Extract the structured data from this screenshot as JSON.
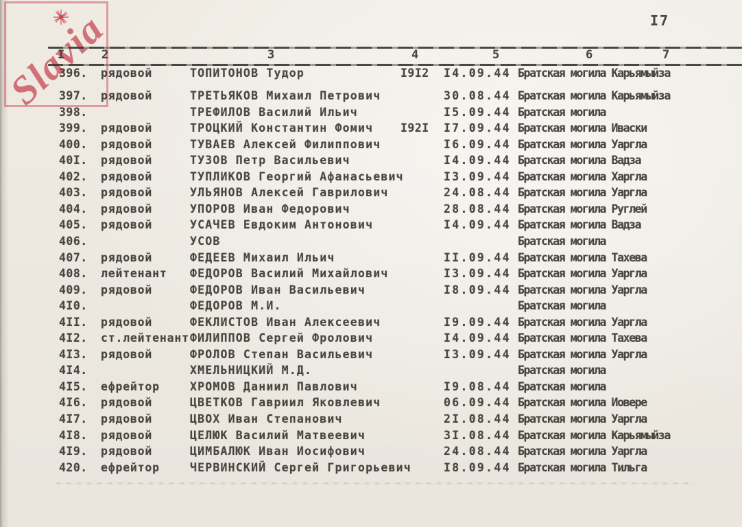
{
  "document": {
    "page_number": "I7",
    "stamp": {
      "text": "Slavia"
    },
    "colors": {
      "paper": "#f4f0e8",
      "ink": "#3b3933",
      "stamp": "#c9545f"
    },
    "table": {
      "column_numbers": [
        "I",
        "2",
        "3",
        "4",
        "5",
        "6",
        "7"
      ],
      "rows": [
        {
          "num": "396.",
          "rank": "рядовой",
          "name": "ТОПИТОНОВ Тудор",
          "year": "I9I2",
          "date": "I4.09.44",
          "burial": "Братская могила Карьямыйза"
        },
        {
          "num": "397.",
          "rank": "рядовой",
          "name": "ТРЕТЬЯКОВ Михаил Петрович",
          "year": "",
          "date": "30.08.44",
          "burial": "Братская могила Карьямыйза"
        },
        {
          "num": "398.",
          "rank": "",
          "name": "ТРЕФИЛОВ Василий Ильич",
          "year": "",
          "date": "I5.09.44",
          "burial": "Братская могила"
        },
        {
          "num": "399.",
          "rank": "рядовой",
          "name": "ТРОЦКИЙ Константин Фомич",
          "year": "I92I",
          "date": "I7.09.44",
          "burial": "Братская могила Иваски"
        },
        {
          "num": "400.",
          "rank": "рядовой",
          "name": "ТУВАЕВ Алексей Филиппович",
          "year": "",
          "date": "I6.09.44",
          "burial": "Братская могила Уаргла"
        },
        {
          "num": "40I.",
          "rank": "рядовой",
          "name": "ТУЗОВ Петр Васильевич",
          "year": "",
          "date": "I4.09.44",
          "burial": "Братская могила Вадза"
        },
        {
          "num": "402.",
          "rank": "рядовой",
          "name": "ТУПЛИКОВ Георгий Афанасьевич",
          "year": "",
          "date": "I3.09.44",
          "burial": "Братская могила Харгла"
        },
        {
          "num": "403.",
          "rank": "рядовой",
          "name": "УЛЬЯНОВ Алексей Гаврилович",
          "year": "",
          "date": "24.08.44",
          "burial": "Братская могила Уаргла"
        },
        {
          "num": "404.",
          "rank": "рядовой",
          "name": "УПОРОВ Иван Федорович",
          "year": "",
          "date": "28.08.44",
          "burial": "Братская могила Руглей"
        },
        {
          "num": "405.",
          "rank": "рядовой",
          "name": "УСАЧЕВ Евдоким Антонович",
          "year": "",
          "date": "I4.09.44",
          "burial": "Братская могила Вадза"
        },
        {
          "num": "406.",
          "rank": "",
          "name": "УСОВ",
          "year": "",
          "date": "",
          "burial": "Братская могила"
        },
        {
          "num": "407.",
          "rank": "рядовой",
          "name": "ФЕДЕЕВ Михаил Ильич",
          "year": "",
          "date": "II.09.44",
          "burial": "Братская могила Тахева"
        },
        {
          "num": "408.",
          "rank": "лейтенант",
          "name": "ФЕДОРОВ Василий Михайлович",
          "year": "",
          "date": "I3.09.44",
          "burial": "Братская могила Уаргла"
        },
        {
          "num": "409.",
          "rank": "рядовой",
          "name": "ФЕДОРОВ Иван Васильевич",
          "year": "",
          "date": "I8.09.44",
          "burial": "Братская могила Уаргла"
        },
        {
          "num": "4I0.",
          "rank": "",
          "name": "ФЕДОРОВ М.И.",
          "year": "",
          "date": "",
          "burial": "Братская могила"
        },
        {
          "num": "4II.",
          "rank": "рядовой",
          "name": "ФЕКЛИСТОВ Иван Алексеевич",
          "year": "",
          "date": "I9.09.44",
          "burial": "Братская могила Уаргла"
        },
        {
          "num": "4I2.",
          "rank": "ст.лейтенант",
          "name": "ФИЛИППОВ Сергей Фролович",
          "year": "",
          "date": "I4.09.44",
          "burial": "Братская могила Тахева"
        },
        {
          "num": "4I3.",
          "rank": "рядовой",
          "name": "ФРОЛОВ Степан Васильевич",
          "year": "",
          "date": "I3.09.44",
          "burial": "Братская могила Уаргла"
        },
        {
          "num": "4I4.",
          "rank": "",
          "name": "ХМЕЛЬНИЦКИЙ М.Д.",
          "year": "",
          "date": "",
          "burial": "Братская могила"
        },
        {
          "num": "4I5.",
          "rank": "ефрейтор",
          "name": "ХРОМОВ Даниил Павлович",
          "year": "",
          "date": "I9.08.44",
          "burial": "Братская могила"
        },
        {
          "num": "4I6.",
          "rank": "рядовой",
          "name": "ЦВЕТКОВ Гавриил Яковлевич",
          "year": "",
          "date": "06.09.44",
          "burial": "Братская могила Иовере"
        },
        {
          "num": "4I7.",
          "rank": "рядовой",
          "name": "ЦВОХ Иван Степанович",
          "year": "",
          "date": "2I.08.44",
          "burial": "Братская могила Уаргла"
        },
        {
          "num": "4I8.",
          "rank": "рядовой",
          "name": "ЦЕЛЮК Василий Матвеевич",
          "year": "",
          "date": "3I.08.44",
          "burial": "Братская могила Карьямыйза"
        },
        {
          "num": "4I9.",
          "rank": "рядовой",
          "name": "ЦИМБАЛЮК Иван Иосифович",
          "year": "",
          "date": "24.08.44",
          "burial": "Братская могила Уаргла"
        },
        {
          "num": "420.",
          "rank": "ефрейтор",
          "name": "ЧЕРВИНСКИЙ Сергей Григорьевич",
          "year": "",
          "date": "I8.09.44",
          "burial": "Братская могила Тильга"
        }
      ]
    }
  }
}
